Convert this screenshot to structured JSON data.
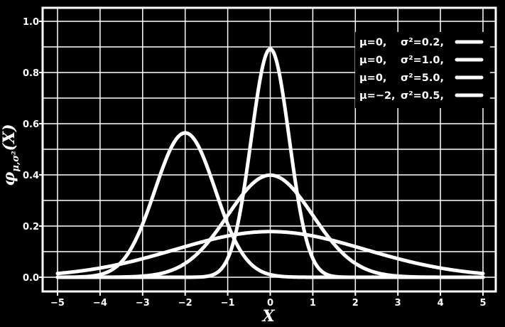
{
  "chart_data": {
    "type": "line",
    "title": "",
    "xlabel": "X",
    "ylabel_main": "φ",
    "ylabel_sub": "μ,σ²",
    "ylabel_arg": "(X)",
    "xlim": [
      -5,
      5
    ],
    "ylim": [
      0,
      1.0
    ],
    "grid": true,
    "legend_position": "top-right",
    "x_ticks": [
      -5,
      -4,
      -3,
      -2,
      -1,
      0,
      1,
      2,
      3,
      4,
      5
    ],
    "x_tick_labels": [
      "−5",
      "−4",
      "−3",
      "−2",
      "−1",
      "0",
      "1",
      "2",
      "3",
      "4",
      "5"
    ],
    "y_ticks": [
      0,
      0.2,
      0.4,
      0.6,
      0.8,
      1.0
    ],
    "y_tick_labels": [
      "0.0",
      "0.2",
      "0.4",
      "0.6",
      "0.8",
      "1.0"
    ],
    "series": [
      {
        "mu": 0,
        "variance": 0.2,
        "label_mu": "μ=0,",
        "label_var": "σ²=0.2,"
      },
      {
        "mu": 0,
        "variance": 1.0,
        "label_mu": "μ=0,",
        "label_var": "σ²=1.0,"
      },
      {
        "mu": 0,
        "variance": 5.0,
        "label_mu": "μ=0,",
        "label_var": "σ²=5.0,"
      },
      {
        "mu": -2,
        "variance": 0.5,
        "label_mu": "μ=−2,",
        "label_var": "σ²=0.5,"
      }
    ],
    "colors": {
      "background": "#000000",
      "foreground": "#ffffff"
    }
  }
}
